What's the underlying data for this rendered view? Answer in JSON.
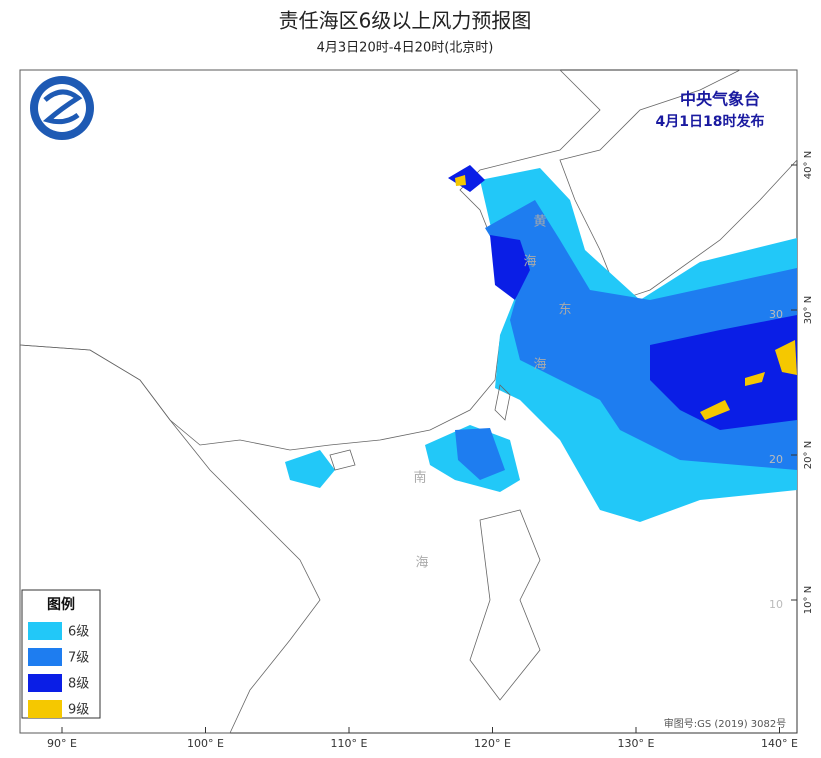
{
  "header": {
    "title": "责任海区6级以上风力预报图",
    "subtitle": "4月3日20时-4日20时(北京时)"
  },
  "issuer": {
    "agency": "中央气象台",
    "time": "4月1日18时发布"
  },
  "legend": {
    "title": "图例",
    "items": [
      {
        "label": "6级",
        "color": "#22c8f8"
      },
      {
        "label": "7级",
        "color": "#1e7df0"
      },
      {
        "label": "8级",
        "color": "#0a1ee6"
      },
      {
        "label": "9级",
        "color": "#f5c800"
      }
    ]
  },
  "axes": {
    "lon_labels": [
      "90° E",
      "100° E",
      "110° E",
      "120° E",
      "130° E",
      "140° E"
    ],
    "lat_labels": [
      "40° N",
      "30° N",
      "20° N",
      "10° N"
    ],
    "inner_lat_labels": [
      "30",
      "20",
      "10"
    ]
  },
  "sea_labels": [
    "黄",
    "海",
    "东",
    "海",
    "南",
    "海"
  ],
  "approval": "审图号:GS (2019) 3082号"
}
